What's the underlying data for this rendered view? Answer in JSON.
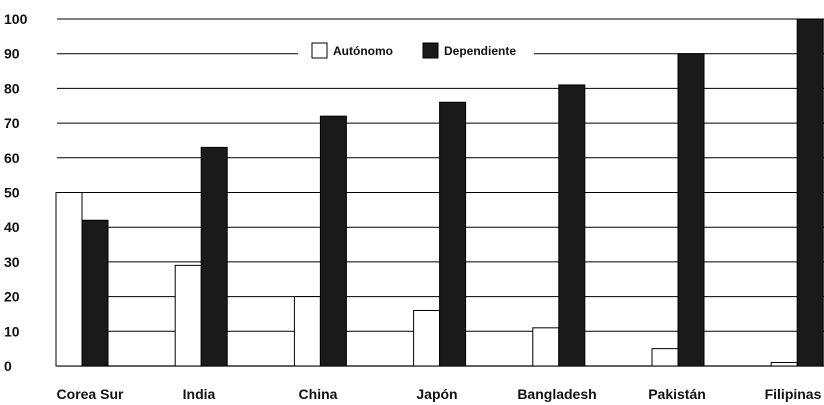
{
  "chart_data": {
    "type": "bar",
    "title": "",
    "xlabel": "",
    "ylabel": "",
    "ylim": [
      0,
      100
    ],
    "yticks": [
      0,
      10,
      20,
      30,
      40,
      50,
      60,
      70,
      80,
      90,
      100
    ],
    "grid": true,
    "legend_position": "top-center",
    "categories": [
      "Corea Sur",
      "India",
      "China",
      "Japón",
      "Bangladesh",
      "Pakistán",
      "Filipinas"
    ],
    "series": [
      {
        "name": "Autónomo",
        "color": "#ffffff",
        "values": [
          50,
          29,
          20,
          16,
          11,
          5,
          1
        ]
      },
      {
        "name": "Dependiente",
        "color": "#1a1a1a",
        "values": [
          42,
          63,
          72,
          76,
          81,
          90,
          100
        ]
      }
    ]
  }
}
